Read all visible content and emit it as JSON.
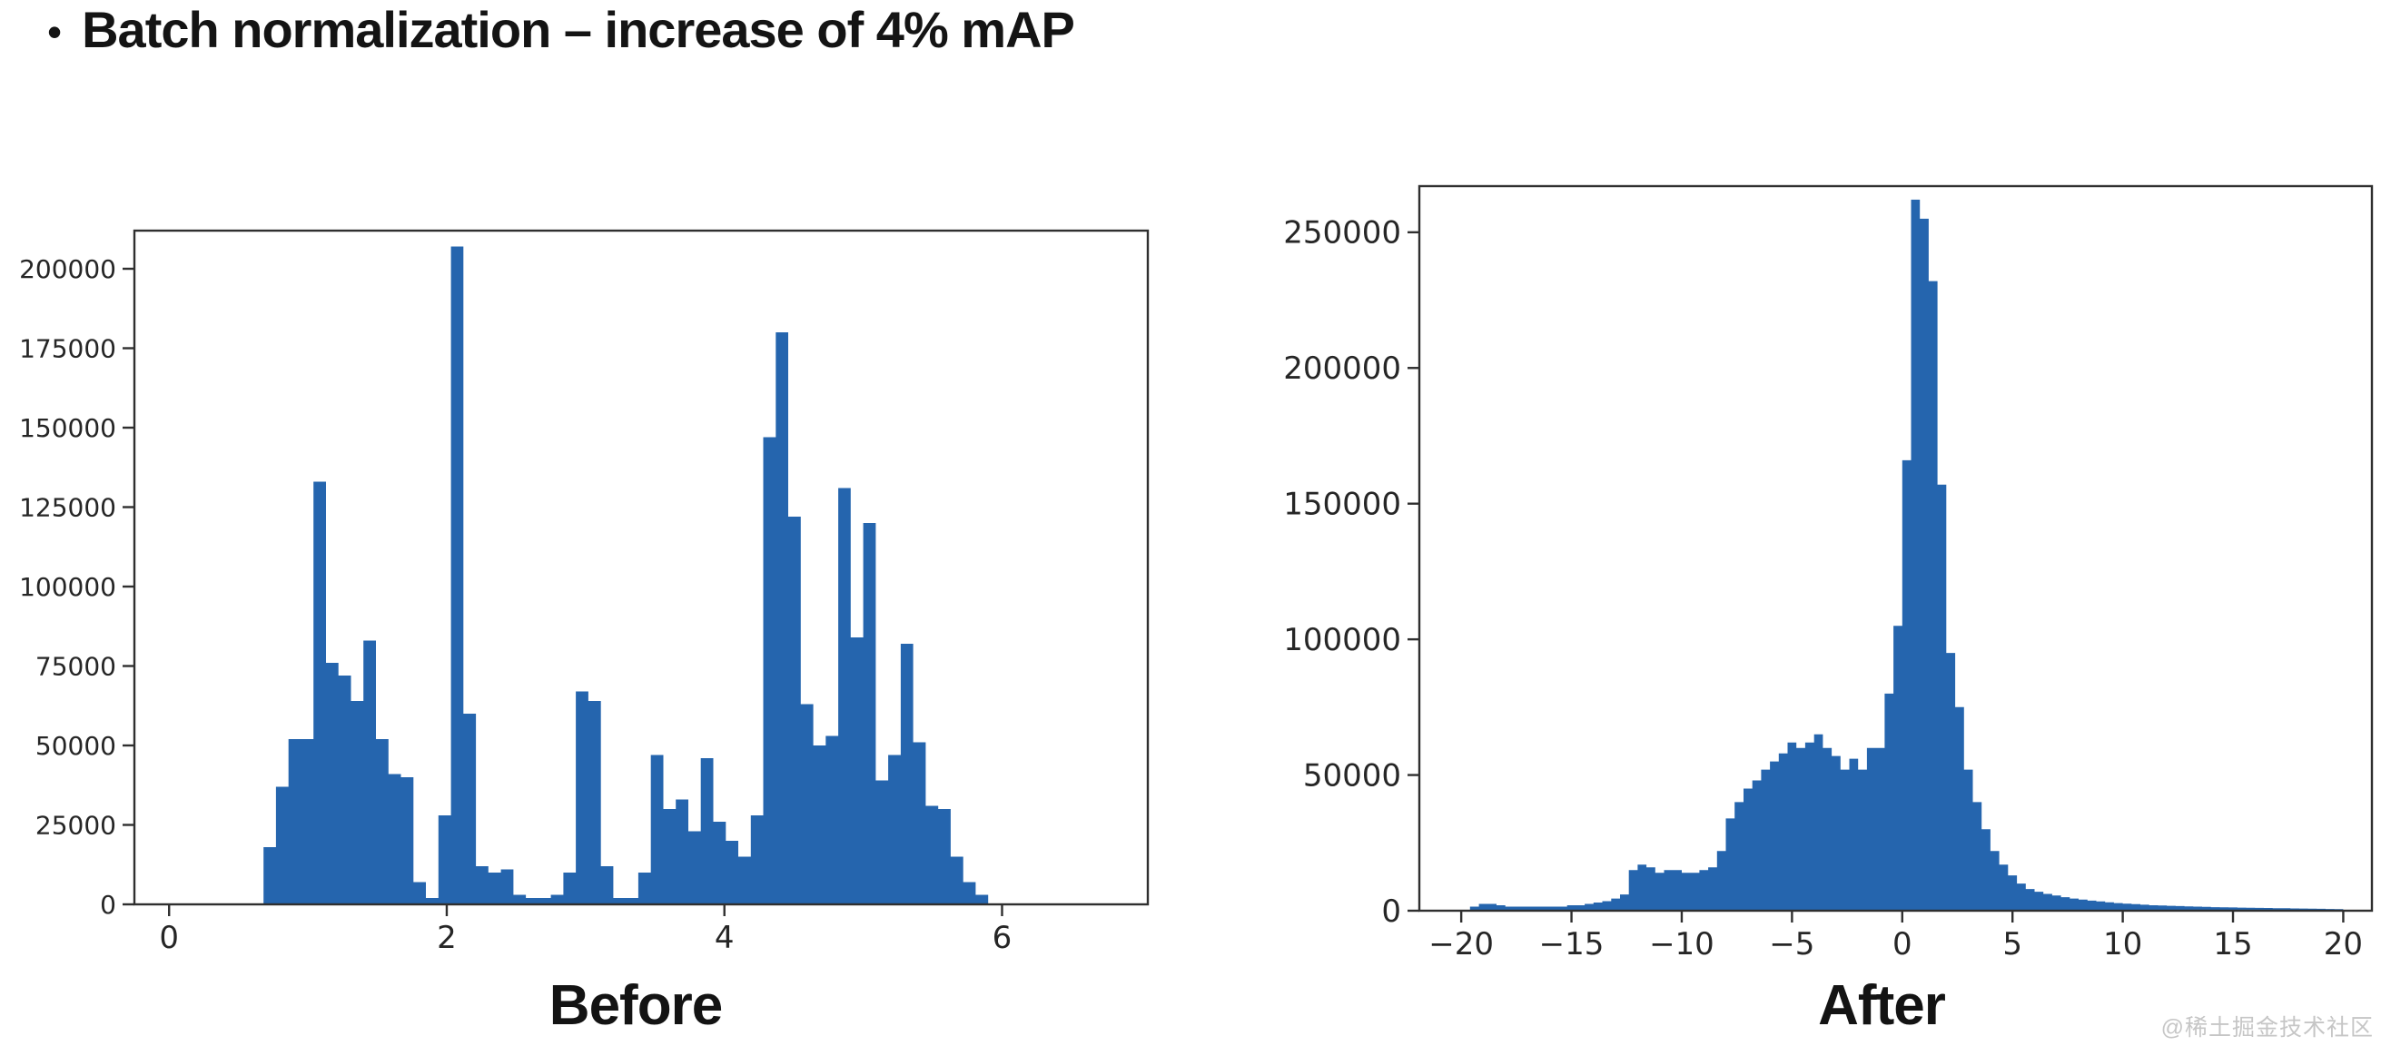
{
  "title": {
    "bullet": "•",
    "text": "Batch normalization – increase of 4% mAP"
  },
  "watermark": "@稀土掘金技术社区",
  "colors": {
    "bar": "#2565ae",
    "axis": "#2f2f2f",
    "tick_label": "#262626",
    "background": "#ffffff"
  },
  "chart_data": [
    {
      "type": "bar",
      "subtype": "histogram",
      "caption": "Before",
      "title": "",
      "xlabel": "",
      "ylabel": "",
      "grid": false,
      "legend": null,
      "xlim": [
        -0.25,
        7.05
      ],
      "ylim": [
        0,
        212000
      ],
      "xtick_values": [
        0,
        2,
        4,
        6
      ],
      "xtick_labels": [
        "0",
        "2",
        "4",
        "6"
      ],
      "ytick_values": [
        0,
        25000,
        50000,
        75000,
        100000,
        125000,
        150000,
        175000,
        200000
      ],
      "ytick_labels": [
        "0",
        "25000",
        "50000",
        "75000",
        "100000",
        "125000",
        "150000",
        "175000",
        "200000"
      ],
      "bins": {
        "start": 0.68,
        "width": 0.09,
        "values": [
          18000,
          37000,
          52000,
          52000,
          133000,
          76000,
          72000,
          64000,
          83000,
          52000,
          41000,
          40000,
          7000,
          2000,
          28000,
          207000,
          60000,
          12000,
          10000,
          11000,
          3000,
          2000,
          2000,
          3000,
          10000,
          67000,
          64000,
          12000,
          2000,
          2000,
          10000,
          47000,
          30000,
          33000,
          23000,
          46000,
          26000,
          20000,
          15000,
          28000,
          147000,
          180000,
          122000,
          63000,
          50000,
          53000,
          131000,
          84000,
          120000,
          39000,
          47000,
          82000,
          51000,
          31000,
          30000,
          15000,
          7000,
          3000
        ]
      }
    },
    {
      "type": "bar",
      "subtype": "histogram",
      "caption": "After",
      "title": "",
      "xlabel": "",
      "ylabel": "",
      "grid": false,
      "legend": null,
      "xlim": [
        -21.9,
        21.3
      ],
      "ylim": [
        0,
        267000
      ],
      "xtick_values": [
        -20,
        -15,
        -10,
        -5,
        0,
        5,
        10,
        15,
        20
      ],
      "xtick_labels": [
        "−20",
        "−15",
        "−10",
        "−5",
        "0",
        "5",
        "10",
        "15",
        "20"
      ],
      "ytick_values": [
        0,
        50000,
        100000,
        150000,
        200000,
        250000
      ],
      "ytick_labels": [
        "0",
        "50000",
        "100000",
        "150000",
        "200000",
        "250000"
      ],
      "bins": {
        "start": -19.6,
        "width": 0.4,
        "values": [
          1500,
          2500,
          2500,
          2000,
          1500,
          1500,
          1500,
          1500,
          1500,
          1500,
          1500,
          2000,
          2000,
          2500,
          3000,
          3500,
          4500,
          6000,
          15000,
          17000,
          16000,
          14000,
          15000,
          15000,
          14000,
          14000,
          15000,
          16000,
          22000,
          34000,
          40000,
          45000,
          48000,
          52000,
          55000,
          58000,
          62000,
          60000,
          62000,
          65000,
          60000,
          57000,
          52000,
          56000,
          52000,
          60000,
          60000,
          80000,
          105000,
          166000,
          262000,
          255000,
          232000,
          157000,
          95000,
          75000,
          52000,
          40000,
          30000,
          22000,
          17000,
          13000,
          10000,
          8000,
          7000,
          6200,
          5600,
          5000,
          4500,
          4100,
          3700,
          3400,
          3100,
          2800,
          2600,
          2400,
          2200,
          2000,
          1900,
          1800,
          1700,
          1600,
          1500,
          1400,
          1300,
          1250,
          1200,
          1150,
          1100,
          1050,
          1000,
          950,
          900,
          850,
          800,
          750,
          700,
          650,
          600
        ]
      }
    }
  ]
}
